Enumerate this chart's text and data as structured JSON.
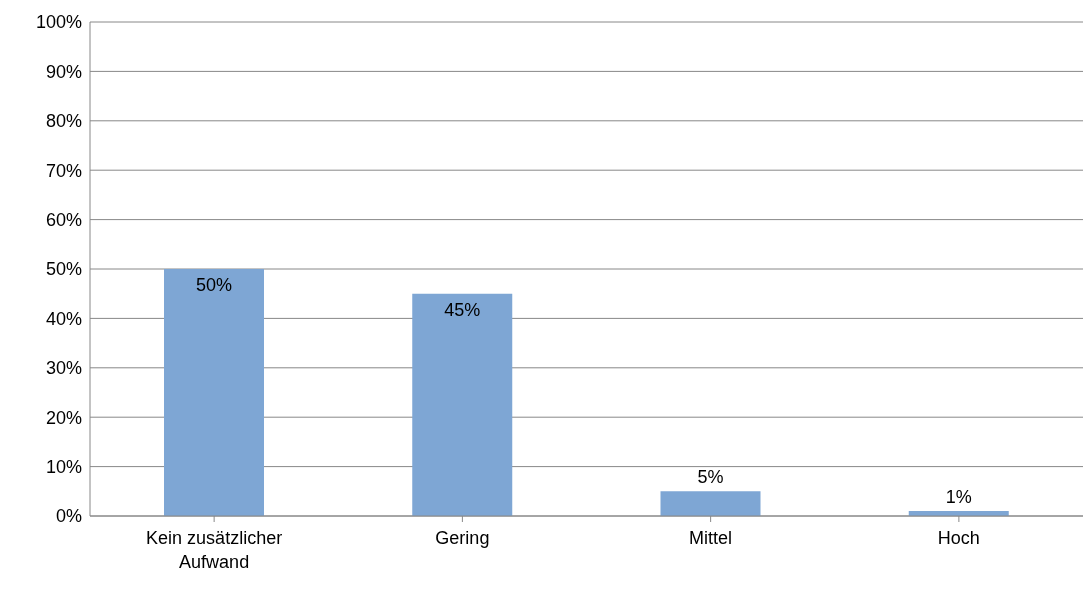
{
  "chart_data": {
    "type": "bar",
    "categories": [
      "Kein zusätzlicher Aufwand",
      "Gering",
      "Mittel",
      "Hoch"
    ],
    "values": [
      50,
      45,
      5,
      1
    ],
    "color": "#7ea6d4",
    "value_labels": [
      "50%",
      "45%",
      "5%",
      "1%"
    ],
    "ylim": [
      0,
      100
    ],
    "yticks": [
      {
        "value": 0,
        "label": "0%"
      },
      {
        "value": 10,
        "label": "10%"
      },
      {
        "value": 20,
        "label": "20%"
      },
      {
        "value": 30,
        "label": "30%"
      },
      {
        "value": 40,
        "label": "40%"
      },
      {
        "value": 50,
        "label": "50%"
      },
      {
        "value": 60,
        "label": "60%"
      },
      {
        "value": 70,
        "label": "70%"
      },
      {
        "value": 80,
        "label": "80%"
      },
      {
        "value": 90,
        "label": "90%"
      },
      {
        "value": 100,
        "label": "100%"
      }
    ],
    "grid": "y",
    "legend": false
  }
}
